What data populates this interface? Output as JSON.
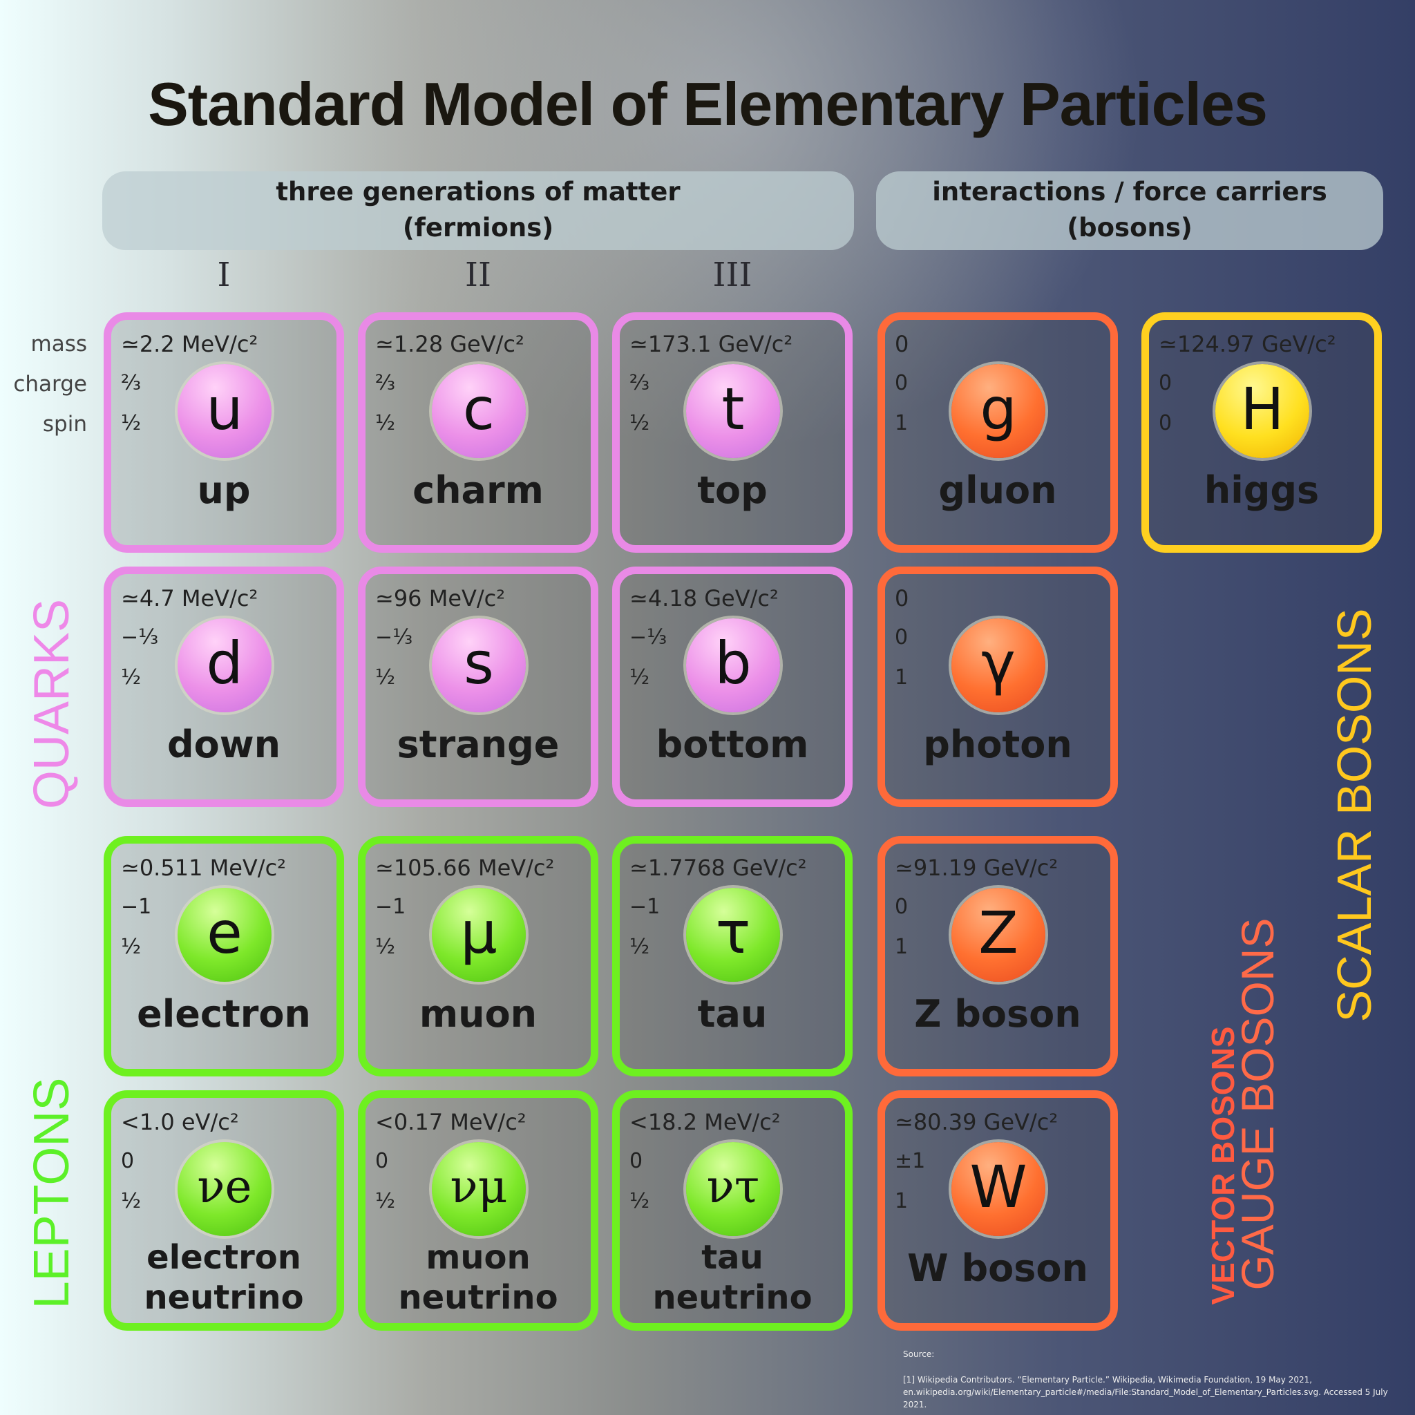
{
  "title": "Standard Model of Elementary Particles",
  "headers": {
    "fermions": [
      "three generations of matter",
      "(fermions)"
    ],
    "bosons": [
      "interactions / force carriers",
      "(bosons)"
    ]
  },
  "generations": [
    "I",
    "II",
    "III"
  ],
  "row_labels": [
    "mass",
    "charge",
    "spin"
  ],
  "groups": {
    "quarks": "QUARKS",
    "leptons": "LEPTONS",
    "gauge": "GAUGE BOSONS",
    "vector": "VECTOR BOSONS",
    "scalar": "SCALAR BOSONS"
  },
  "colors": {
    "quark": "#e98ae6",
    "lepton": "#6ef020",
    "gauge": "#ff6a3a",
    "scalar": "#ffd020"
  },
  "particles": [
    {
      "name": "up",
      "symbol": "u",
      "mass": "≃2.2 MeV/c²",
      "charge": "⅔",
      "spin": "½",
      "type": "quark"
    },
    {
      "name": "charm",
      "symbol": "c",
      "mass": "≃1.28 GeV/c²",
      "charge": "⅔",
      "spin": "½",
      "type": "quark"
    },
    {
      "name": "top",
      "symbol": "t",
      "mass": "≃173.1 GeV/c²",
      "charge": "⅔",
      "spin": "½",
      "type": "quark"
    },
    {
      "name": "gluon",
      "symbol": "g",
      "mass": "0",
      "charge": "0",
      "spin": "1",
      "type": "gauge"
    },
    {
      "name": "higgs",
      "symbol": "H",
      "mass": "≃124.97 GeV/c²",
      "charge": "0",
      "spin": "0",
      "type": "scalar"
    },
    {
      "name": "down",
      "symbol": "d",
      "mass": "≃4.7 MeV/c²",
      "charge": "−⅓",
      "spin": "½",
      "type": "quark"
    },
    {
      "name": "strange",
      "symbol": "s",
      "mass": "≃96 MeV/c²",
      "charge": "−⅓",
      "spin": "½",
      "type": "quark"
    },
    {
      "name": "bottom",
      "symbol": "b",
      "mass": "≃4.18 GeV/c²",
      "charge": "−⅓",
      "spin": "½",
      "type": "quark"
    },
    {
      "name": "photon",
      "symbol": "γ",
      "mass": "0",
      "charge": "0",
      "spin": "1",
      "type": "gauge"
    },
    {
      "name": "electron",
      "symbol": "e",
      "mass": "≃0.511 MeV/c²",
      "charge": "−1",
      "spin": "½",
      "type": "lepton"
    },
    {
      "name": "muon",
      "symbol": "μ",
      "mass": "≃105.66 MeV/c²",
      "charge": "−1",
      "spin": "½",
      "type": "lepton"
    },
    {
      "name": "tau",
      "symbol": "τ",
      "mass": "≃1.7768 GeV/c²",
      "charge": "−1",
      "spin": "½",
      "type": "lepton"
    },
    {
      "name": "Z boson",
      "symbol": "Z",
      "mass": "≃91.19 GeV/c²",
      "charge": "0",
      "spin": "1",
      "type": "gauge"
    },
    {
      "name": "electron neutrino",
      "symbol": "νe",
      "mass": "<1.0 eV/c²",
      "charge": "0",
      "spin": "½",
      "type": "lepton"
    },
    {
      "name": "muon neutrino",
      "symbol": "νμ",
      "mass": "<0.17 MeV/c²",
      "charge": "0",
      "spin": "½",
      "type": "lepton"
    },
    {
      "name": "tau neutrino",
      "symbol": "ντ",
      "mass": "<18.2 MeV/c²",
      "charge": "0",
      "spin": "½",
      "type": "lepton"
    },
    {
      "name": "W boson",
      "symbol": "W",
      "mass": "≃80.39 GeV/c²",
      "charge": "±1",
      "spin": "1",
      "type": "gauge"
    }
  ],
  "source_label": "Source:",
  "citation": [
    "[1] Wikipedia Contributors. “Elementary Particle.” Wikipedia, Wikimedia Foundation, 19 May 2021,",
    "en.wikipedia.org/wiki/Elementary_particle#/media/File:Standard_Model_of_Elementary_Particles.svg. Accessed 5 July 2021."
  ]
}
